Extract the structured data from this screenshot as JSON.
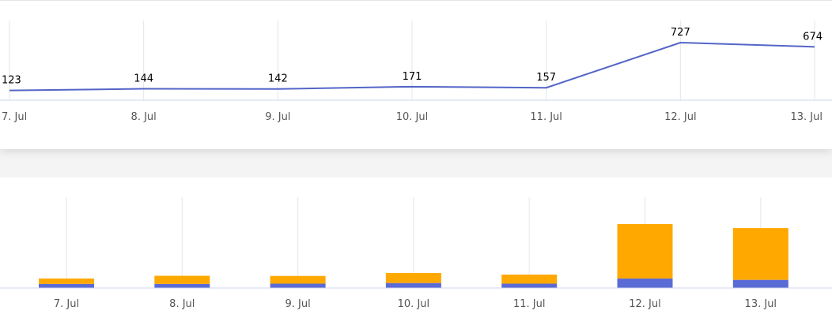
{
  "colors": {
    "line": "#5365c7",
    "bar_bottom": "#5b6bd6",
    "bar_top": "#ffa800",
    "grid": "#e3e6ef",
    "axis": "#ccd6eb"
  },
  "chart_data": [
    {
      "type": "line",
      "categories": [
        "7. Jul",
        "8. Jul",
        "9. Jul",
        "10. Jul",
        "11. Jul",
        "12. Jul",
        "13. Jul"
      ],
      "series": [
        {
          "values": [
            123,
            144,
            142,
            171,
            157,
            727,
            674
          ]
        }
      ],
      "data_labels": [
        "123",
        "144",
        "142",
        "171",
        "157",
        "727",
        "674"
      ],
      "ylim": [
        0,
        800
      ],
      "grid": true
    },
    {
      "type": "bar",
      "stacked": true,
      "categories": [
        "7. Jul",
        "8. Jul",
        "9. Jul",
        "10. Jul",
        "11. Jul",
        "12. Jul",
        "13. Jul"
      ],
      "series": [
        {
          "values": [
            45,
            45,
            48,
            55,
            48,
            105,
            90
          ]
        },
        {
          "values": [
            60,
            90,
            85,
            110,
            100,
            600,
            570
          ]
        }
      ],
      "ylim": [
        0,
        1000
      ],
      "grid": true
    }
  ]
}
